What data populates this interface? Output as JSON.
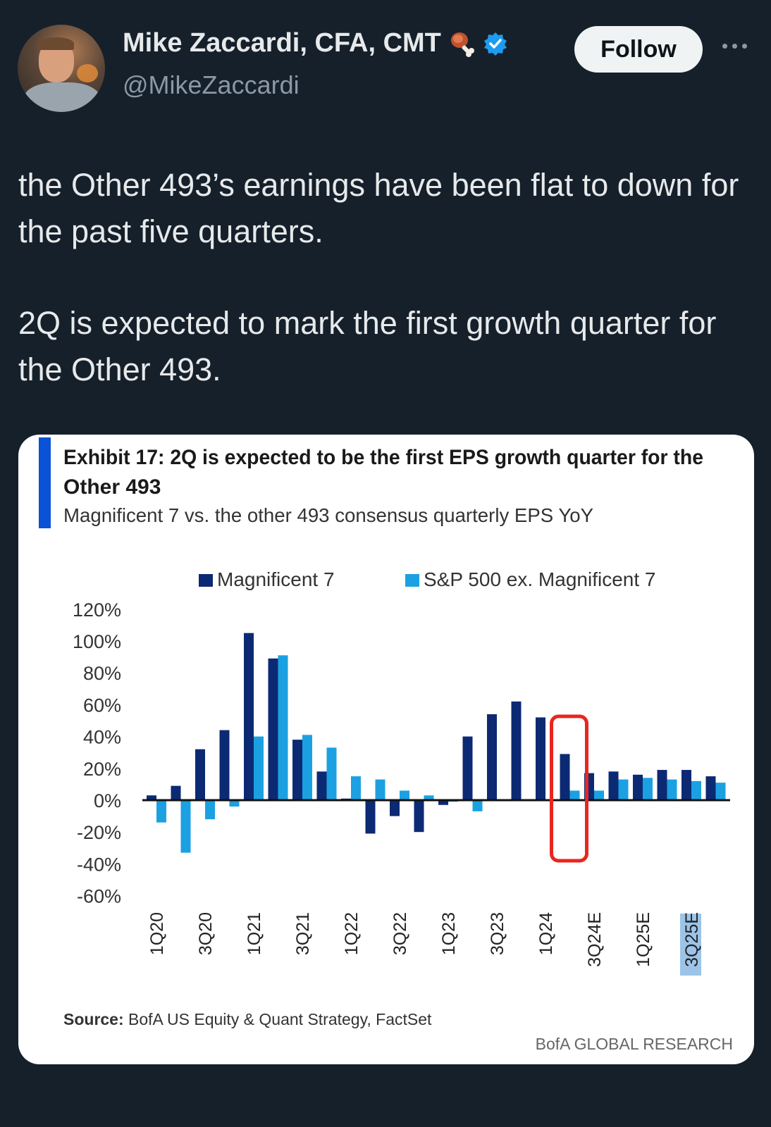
{
  "author": {
    "name": "Mike Zaccardi, CFA, CMT",
    "handle": "@MikeZaccardi",
    "badge_icons": [
      "meat-on-bone-icon",
      "verified-badge-icon"
    ],
    "verified_color": "#1d9bf0"
  },
  "actions": {
    "follow_label": "Follow",
    "more_icon": "more-options-icon"
  },
  "tweet": {
    "paragraph_1": "the Other 493’s earnings have been flat to down for the past five quarters.",
    "paragraph_2": "2Q is expected to mark the first growth quarter for the Other 493."
  },
  "exhibit": {
    "title_line_1": "Exhibit 17: 2Q is expected to be the first EPS growth quarter for the",
    "title_line_2": "Other 493",
    "subtitle": "Magnificent 7 vs. the other 493 consensus quarterly EPS YoY",
    "source_label": "Source:",
    "source_text": " BofA US Equity & Quant Strategy, FactSet",
    "footer": "BofA GLOBAL RESEARCH",
    "accent_color": "#0a52d6"
  },
  "chart_data": {
    "type": "bar",
    "categories": [
      "1Q20",
      "2Q20",
      "3Q20",
      "4Q20",
      "1Q21",
      "2Q21",
      "3Q21",
      "4Q21",
      "1Q22",
      "2Q22",
      "3Q22",
      "4Q22",
      "1Q23",
      "2Q23",
      "3Q23",
      "4Q23",
      "1Q24",
      "2Q24E",
      "3Q24E",
      "4Q24E",
      "1Q25E",
      "2Q25E",
      "3Q25E",
      "4Q25E"
    ],
    "tick_labels": [
      "1Q20",
      "3Q20",
      "1Q21",
      "3Q21",
      "1Q22",
      "3Q22",
      "1Q23",
      "3Q23",
      "1Q24",
      "3Q24E",
      "1Q25E",
      "3Q25E"
    ],
    "series": [
      {
        "name": "Magnificent 7",
        "color": "#0c2a73",
        "values": [
          3,
          9,
          32,
          44,
          105,
          89,
          38,
          18,
          1,
          -21,
          -10,
          -20,
          -3,
          40,
          54,
          62,
          52,
          29,
          17,
          18,
          16,
          19,
          19,
          15
        ]
      },
      {
        "name": "S&P 500 ex. Magnificent 7",
        "color": "#1ba1e2",
        "values": [
          -14,
          -33,
          -12,
          -4,
          40,
          91,
          41,
          33,
          15,
          13,
          6,
          3,
          -1,
          -7,
          0,
          0,
          0,
          6,
          6,
          13,
          14,
          13,
          12,
          11
        ]
      }
    ],
    "ylim": [
      -60,
      120
    ],
    "yticks": [
      "120%",
      "100%",
      "80%",
      "60%",
      "40%",
      "20%",
      "0%",
      "-20%",
      "-40%",
      "-60%"
    ],
    "highlight": {
      "category": "2Q24E",
      "color": "#e8261f"
    },
    "selected_tick": "3Q25E",
    "legend_position": "top",
    "grid": false
  }
}
